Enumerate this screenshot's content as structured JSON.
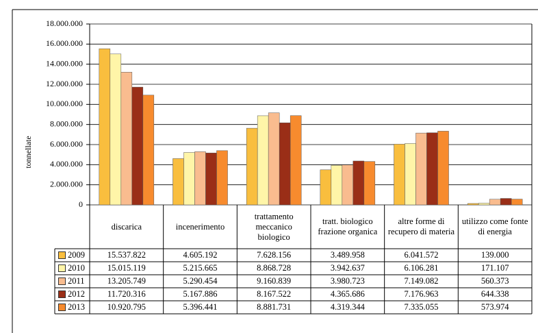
{
  "chart_data": {
    "type": "bar",
    "y_label": "tonnellate",
    "categories": [
      "discarica",
      "incenerimento",
      "trattamento meccanico biologico",
      "tratt. biologico frazione organica",
      "altre forme di recupero di materia",
      "utilizzo come fonte di energia"
    ],
    "series": [
      {
        "name": "2009",
        "color": "#f9be3e",
        "values": [
          15537822,
          4605192,
          7628156,
          3489958,
          6041572,
          139000
        ],
        "value_labels": [
          "15.537.822",
          "4.605.192",
          "7.628.156",
          "3.489.958",
          "6.041.572",
          "139.000"
        ]
      },
      {
        "name": "2010",
        "color": "#fff5a8",
        "values": [
          15015119,
          5215665,
          8868728,
          3942637,
          6106281,
          171107
        ],
        "value_labels": [
          "15.015.119",
          "5.215.665",
          "8.868.728",
          "3.942.637",
          "6.106.281",
          "171.107"
        ]
      },
      {
        "name": "2011",
        "color": "#f9bc8f",
        "values": [
          13205749,
          5290454,
          9160839,
          3980723,
          7149082,
          560373
        ],
        "value_labels": [
          "13.205.749",
          "5.290.454",
          "9.160.839",
          "3.980.723",
          "7.149.082",
          "560.373"
        ]
      },
      {
        "name": "2012",
        "color": "#9a2e17",
        "values": [
          11720316,
          5167886,
          8167522,
          4365686,
          7176963,
          644338
        ],
        "value_labels": [
          "11.720.316",
          "5.167.886",
          "8.167.522",
          "4.365.686",
          "7.176.963",
          "644.338"
        ]
      },
      {
        "name": "2013",
        "color": "#f78b2e",
        "values": [
          10920795,
          5396441,
          8881731,
          4319344,
          7335055,
          573974
        ],
        "value_labels": [
          "10.920.795",
          "5.396.441",
          "8.881.731",
          "4.319.344",
          "7.335.055",
          "573.974"
        ]
      }
    ],
    "ylim": [
      0,
      18000000
    ],
    "yticks": [
      0,
      {
        "value": 2000000,
        "label": "2.000.000"
      },
      {
        "value": 4000000,
        "label": "4.000.000"
      },
      {
        "value": 6000000,
        "label": "6.000.000"
      },
      {
        "value": 8000000,
        "label": "8.000.000"
      },
      {
        "value": 10000000,
        "label": "10.000.000"
      },
      {
        "value": 12000000,
        "label": "12.000.000"
      },
      {
        "value": 14000000,
        "label": "14.000.000"
      },
      {
        "value": 16000000,
        "label": "16.000.000"
      },
      {
        "value": 18000000,
        "label": "18.000.000"
      }
    ],
    "grid": true
  }
}
